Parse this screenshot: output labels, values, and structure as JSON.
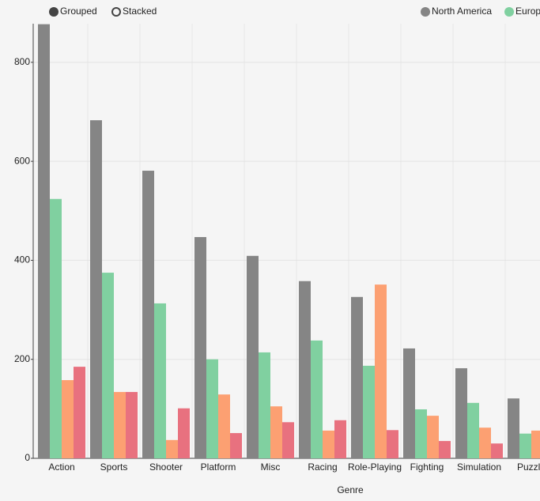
{
  "chart_data": {
    "type": "bar",
    "mode_options": [
      "Grouped",
      "Stacked"
    ],
    "x_label": "Genre",
    "categories": [
      "Action",
      "Sports",
      "Shooter",
      "Platform",
      "Misc",
      "Racing",
      "Role-Playing",
      "Fighting",
      "Simulation",
      "Puzzle"
    ],
    "series": [
      {
        "name": "North America",
        "color": "#858585",
        "values": [
          877,
          683,
          581,
          447,
          409,
          358,
          326,
          222,
          182,
          121
        ]
      },
      {
        "name": "Europe",
        "color": "#80d0a0",
        "values": [
          524,
          375,
          313,
          200,
          214,
          238,
          187,
          99,
          112,
          50
        ]
      },
      {
        "color": "#fca072",
        "values": [
          158,
          134,
          37,
          129,
          105,
          56,
          351,
          86,
          62,
          56
        ]
      },
      {
        "color": "#e8717f",
        "values": [
          185,
          134,
          101,
          51,
          73,
          77,
          57,
          35,
          30,
          null
        ]
      }
    ],
    "ylim": [
      0,
      878
    ],
    "yticks": [
      0,
      200,
      400,
      600,
      800
    ],
    "grid": true
  }
}
